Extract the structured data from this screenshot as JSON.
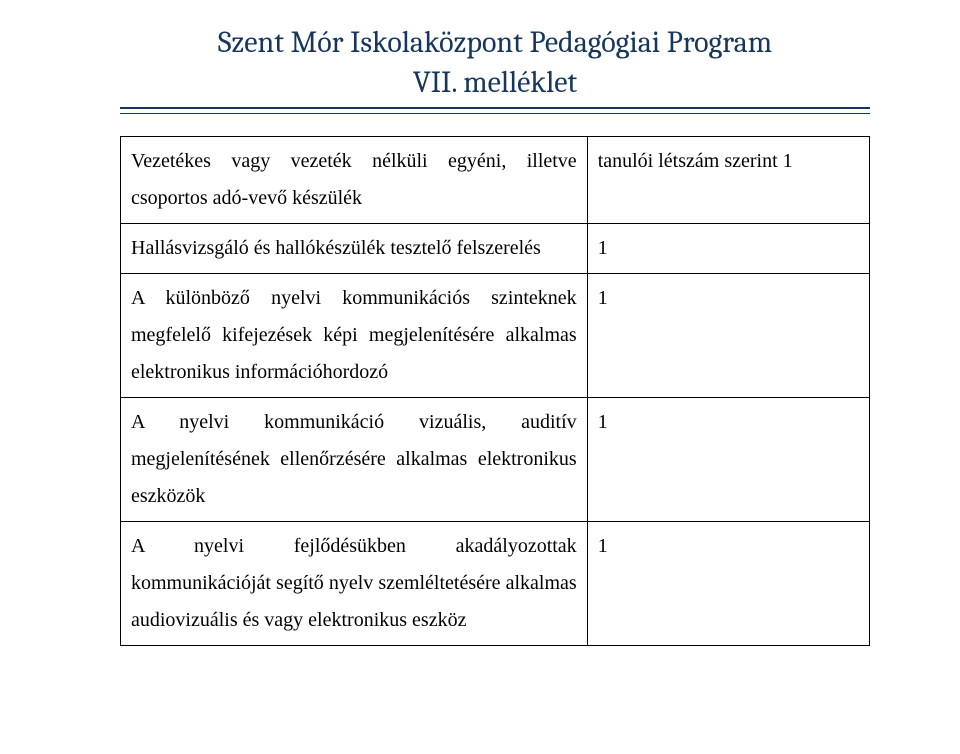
{
  "header": {
    "title": "Szent Mór Iskolaközpont Pedagógiai Program",
    "subtitle": "VII. melléklet"
  },
  "table": {
    "rows": [
      {
        "left": "Vezetékes vagy vezeték nélküli egyéni, illetve csoportos adó-vevő készülék",
        "right": "tanulói létszám szerint 1"
      },
      {
        "left": "Hallásvizsgáló és hallókészülék tesztelő felszerelés",
        "right": "1"
      },
      {
        "left": "A különböző nyelvi kommunikációs szinteknek megfelelő kifejezések képi megjelenítésére alkalmas elektronikus információhordozó",
        "right": "1"
      },
      {
        "left": "A nyelvi kommunikáció vizuális, auditív megjelenítésének ellenőrzésére alkalmas elektronikus eszközök",
        "right": "1"
      },
      {
        "left": "A nyelvi fejlődésükben akadályozottak kommunikációját segítő nyelv szemléltetésére alkalmas audiovizuális és vagy elektronikus eszköz",
        "right": "1"
      }
    ]
  },
  "colors": {
    "heading": "#17365d",
    "rule": "#17365d",
    "border": "#000000",
    "text": "#000000",
    "background": "#ffffff"
  },
  "typography": {
    "title_fontsize": 30,
    "body_fontsize": 20,
    "body_line_height": 1.85
  }
}
